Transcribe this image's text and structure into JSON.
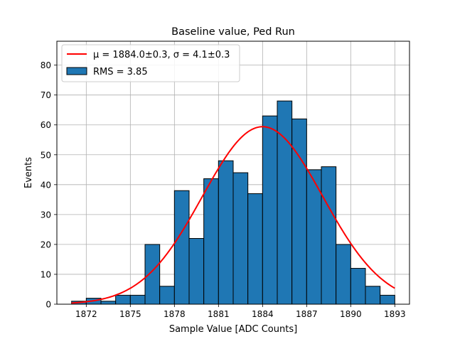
{
  "chart_data": {
    "type": "bar",
    "title": "Baseline value, Ped Run",
    "xlabel": "Sample Value [ADC Counts]",
    "ylabel": "Events",
    "xlim": [
      1870,
      1894
    ],
    "ylim": [
      0,
      88
    ],
    "xticks": [
      1872,
      1875,
      1878,
      1881,
      1884,
      1887,
      1890,
      1893
    ],
    "yticks": [
      0,
      10,
      20,
      30,
      40,
      50,
      60,
      70,
      80
    ],
    "grid": true,
    "legend_position": "top-left",
    "histogram": {
      "name": "RMS = 3.85",
      "color": "#1f77b4",
      "edge_color": "#000000",
      "bin_start": 1871,
      "bin_width": 1,
      "counts": [
        1,
        2,
        1,
        3,
        3,
        20,
        6,
        38,
        22,
        42,
        48,
        44,
        37,
        63,
        68,
        62,
        45,
        46,
        20,
        12,
        6,
        3
      ]
    },
    "fit": {
      "name_mu": "μ = 1884.0±0.3, σ = 4.1±0.3",
      "color": "#ff0000",
      "amplitude": 59.4,
      "mu": 1884.0,
      "sigma": 4.1,
      "x_range": [
        1871,
        1893
      ]
    }
  }
}
